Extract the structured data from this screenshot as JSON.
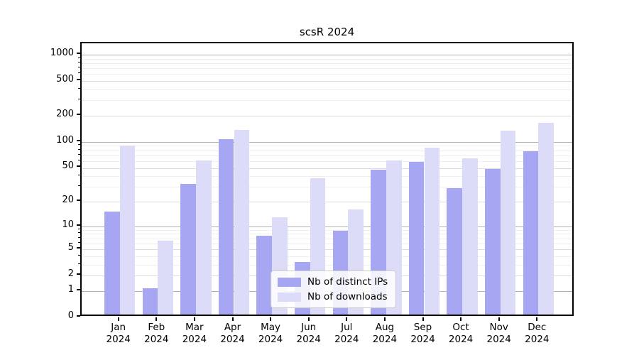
{
  "title": "scsR 2024",
  "chart_data": {
    "type": "bar",
    "categories": [
      "Jan 2024",
      "Feb 2024",
      "Mar 2024",
      "Apr 2024",
      "May 2024",
      "Jun 2024",
      "Jul 2024",
      "Aug 2024",
      "Sep 2024",
      "Oct 2024",
      "Nov 2024",
      "Dec 2024"
    ],
    "series": [
      {
        "name": "Nb of distinct IPs",
        "color": "#a6a6f2",
        "values": [
          14,
          1,
          30,
          100,
          7,
          3,
          8,
          44,
          54,
          27,
          45,
          72
        ]
      },
      {
        "name": "Nb of downloads",
        "color": "#dcdcf8",
        "values": [
          85,
          6,
          57,
          127,
          12,
          35,
          15,
          57,
          80,
          60,
          125,
          153
        ]
      }
    ],
    "yscale": "log1p",
    "yticks": [
      0,
      1,
      2,
      5,
      10,
      20,
      50,
      100,
      200,
      500,
      1000
    ],
    "ylim": [
      0,
      1330
    ],
    "xlabel": "",
    "ylabel": "",
    "grid": true,
    "legend_position": "lower center"
  }
}
